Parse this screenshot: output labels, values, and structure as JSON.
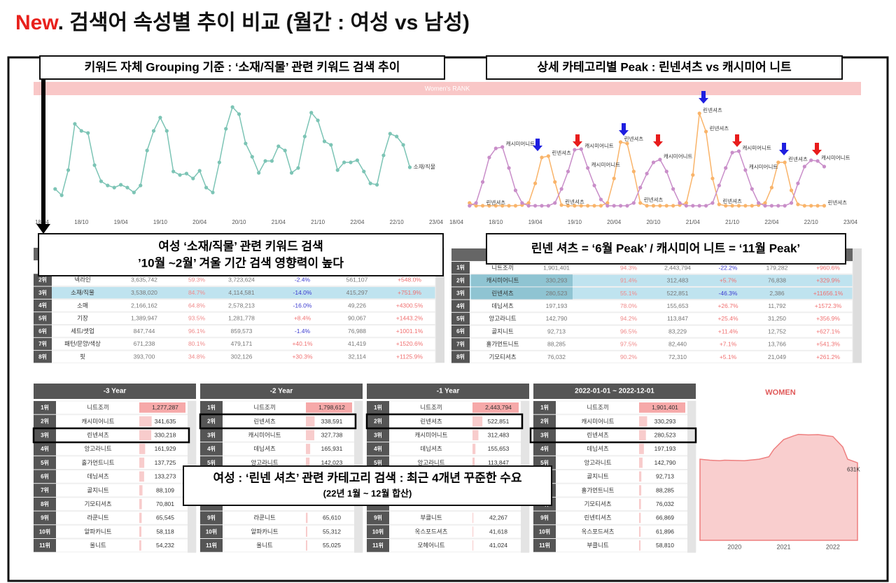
{
  "title": {
    "lead": "New",
    "text": ". 검색어 속성별 추이 비교 (월간 : 여성 vs 남성)"
  },
  "callouts": {
    "top_left": "키워드 자체 Grouping 기준 : ‘소재/직물’ 관련 키워드 검색 추이",
    "top_right": "상세 카테고리별 Peak : 린넨셔츠 vs 캐시미어 니트",
    "mid_left": [
      "여성 ‘소재/직물’  관련 키워드 검색",
      "’10월 ~2월’ 겨울 기간 검색 영향력이 높다"
    ],
    "mid_right": "린넨 셔츠 = ‘6월 Peak’  / 캐시미어 니트 = ‘11월 Peak’",
    "bottom": [
      "여성 : ‘린넨 셔츠’ 관련 카테고리 검색 : 최근 4개년 꾸준한 수요",
      "(22년 1월 ~ 12월 합산)"
    ]
  },
  "banner": "Women's RANK",
  "chart_data": [
    {
      "type": "line",
      "xlim": [
        "18/04",
        "23/04"
      ],
      "ylim": [
        0,
        160
      ],
      "xticks": [
        "18/04",
        "18/10",
        "19/04",
        "19/10",
        "20/04",
        "20/10",
        "21/04",
        "21/10",
        "22/04",
        "22/10",
        "23/04"
      ],
      "x": [
        "18/06",
        "18/07",
        "18/08",
        "18/09",
        "18/10",
        "18/11",
        "18/12",
        "19/01",
        "19/02",
        "19/03",
        "19/04",
        "19/05",
        "19/06",
        "19/07",
        "19/08",
        "19/09",
        "19/10",
        "19/11",
        "19/12",
        "20/01",
        "20/02",
        "20/03",
        "20/04",
        "20/05",
        "20/06",
        "20/07",
        "20/08",
        "20/09",
        "20/10",
        "20/11",
        "20/12",
        "21/01",
        "21/02",
        "21/03",
        "21/04",
        "21/05",
        "21/06",
        "21/07",
        "21/08",
        "21/09",
        "21/10",
        "21/11",
        "21/12",
        "22/01",
        "22/02",
        "22/03",
        "22/04",
        "22/05",
        "22/06",
        "22/07",
        "22/08",
        "22/09",
        "22/10",
        "22/11",
        "22/12"
      ],
      "series": [
        {
          "name": "소재/직물",
          "color": "#7cc4b5",
          "values": [
            30,
            21,
            57,
            123,
            113,
            110,
            64,
            41,
            35,
            32,
            36,
            32,
            25,
            35,
            85,
            113,
            132,
            113,
            55,
            50,
            52,
            45,
            56,
            32,
            25,
            68,
            116,
            147,
            137,
            95,
            76,
            53,
            70,
            70,
            91,
            85,
            53,
            60,
            105,
            139,
            128,
            98,
            93,
            57,
            68,
            68,
            71,
            55,
            38,
            36,
            78,
            109,
            105,
            93,
            61
          ]
        }
      ]
    },
    {
      "type": "line",
      "xlim": [
        "18/04",
        "23/04"
      ],
      "ylim": [
        0,
        160
      ],
      "xticks": [
        "18/04",
        "18/10",
        "19/04",
        "19/10",
        "20/04",
        "20/10",
        "21/04",
        "21/10",
        "22/04",
        "22/10",
        "23/04"
      ],
      "x": [
        "18/06",
        "18/07",
        "18/08",
        "18/09",
        "18/10",
        "18/11",
        "18/12",
        "19/01",
        "19/02",
        "19/03",
        "19/04",
        "19/05",
        "19/06",
        "19/07",
        "19/08",
        "19/09",
        "19/10",
        "19/11",
        "19/12",
        "20/01",
        "20/02",
        "20/03",
        "20/04",
        "20/05",
        "20/06",
        "20/07",
        "20/08",
        "20/09",
        "20/10",
        "20/11",
        "20/12",
        "21/01",
        "21/02",
        "21/03",
        "21/04",
        "21/05",
        "21/06",
        "21/07",
        "21/08",
        "21/09",
        "21/10",
        "21/11",
        "21/12",
        "22/01",
        "22/02",
        "22/03",
        "22/04",
        "22/05",
        "22/06",
        "22/07",
        "22/08",
        "22/09",
        "22/10",
        "22/11",
        "22/12"
      ],
      "series": [
        {
          "name": "린넨셔츠",
          "color": "#f9b46a",
          "values": [
            10,
            6,
            6,
            6,
            6,
            6,
            6,
            6,
            7,
            10,
            38,
            75,
            77,
            40,
            7,
            6,
            6,
            6,
            6,
            6,
            6,
            10,
            45,
            97,
            95,
            55,
            10,
            6,
            6,
            6,
            6,
            6,
            7,
            10,
            50,
            138,
            112,
            45,
            8,
            6,
            6,
            6,
            6,
            6,
            7,
            10,
            32,
            68,
            68,
            28,
            8,
            6,
            6,
            6,
            6
          ]
        },
        {
          "name": "캐시미어니트",
          "color": "#c98ec9",
          "values": [
            6,
            10,
            40,
            75,
            88,
            90,
            60,
            28,
            10,
            6,
            6,
            6,
            6,
            10,
            30,
            55,
            86,
            87,
            60,
            35,
            15,
            6,
            6,
            6,
            6,
            10,
            32,
            52,
            68,
            72,
            55,
            30,
            10,
            6,
            6,
            6,
            6,
            10,
            35,
            60,
            82,
            84,
            57,
            30,
            10,
            6,
            6,
            6,
            6,
            10,
            38,
            62,
            71,
            70,
            62
          ]
        }
      ],
      "annotations": [
        {
          "series": 1,
          "index": 5
        },
        {
          "series": 0,
          "index": 12
        },
        {
          "series": 1,
          "index": 17
        },
        {
          "series": 1,
          "index": 18
        },
        {
          "series": 0,
          "index": 23
        },
        {
          "series": 1,
          "index": 29
        },
        {
          "series": 0,
          "index": 35
        },
        {
          "series": 0,
          "index": 36
        },
        {
          "series": 1,
          "index": 41
        },
        {
          "series": 1,
          "index": 42
        },
        {
          "series": 0,
          "index": 48
        },
        {
          "series": 1,
          "index": 53
        },
        {
          "series": 0,
          "index": 54
        },
        {
          "series": 0,
          "index": 2
        },
        {
          "series": 0,
          "index": 14
        },
        {
          "series": 0,
          "index": 26
        },
        {
          "series": 0,
          "index": 38
        }
      ]
    },
    {
      "type": "area",
      "title": "WOMEN",
      "color": "#f4a6a6",
      "xlim": [
        2019.3,
        2022.5
      ],
      "ylim": [
        0,
        900
      ],
      "xticks": [
        2020,
        2021,
        2022
      ],
      "x": [
        2019.3,
        2019.5,
        2019.7,
        2019.8,
        2020.0,
        2020.2,
        2020.3,
        2020.5,
        2020.7,
        2020.8,
        2021.0,
        2021.2,
        2021.3,
        2021.5,
        2021.7,
        2021.8,
        2022.0,
        2022.2,
        2022.3,
        2022.5
      ],
      "values": [
        660,
        652,
        648,
        652,
        650,
        648,
        652,
        660,
        680,
        740,
        820,
        850,
        862,
        858,
        860,
        855,
        845,
        760,
        660,
        631
      ],
      "value_labels": [
        null,
        null,
        null,
        null,
        null,
        null,
        null,
        null,
        null,
        null,
        null,
        null,
        null,
        null,
        null,
        null,
        null,
        null,
        null,
        "631K"
      ]
    }
  ],
  "tables": {
    "attribute": {
      "rows": [
        {
          "rank": "2위",
          "cells": [
            "넥라인",
            "3,635,742",
            "59.3%",
            "3,723,624",
            "-2.4%",
            "561,107",
            "+548.0%"
          ]
        },
        {
          "rank": "3위",
          "highlight": true,
          "cells": [
            "소재/직물",
            "3,538,020",
            "84.7%",
            "4,114,581",
            "-14.0%",
            "415,297",
            "+751.9%"
          ]
        },
        {
          "rank": "4위",
          "cells": [
            "소매",
            "2,166,162",
            "64.8%",
            "2,578,213",
            "-16.0%",
            "49,226",
            "+4300.5%"
          ]
        },
        {
          "rank": "5위",
          "cells": [
            "기장",
            "1,389,947",
            "93.5%",
            "1,281,778",
            "+8.4%",
            "90,067",
            "+1443.2%"
          ]
        },
        {
          "rank": "6위",
          "cells": [
            "세트/셋업",
            "847,744",
            "96.1%",
            "859,573",
            "-1.4%",
            "76,988",
            "+1001.1%"
          ]
        },
        {
          "rank": "7위",
          "cells": [
            "패턴/문양/색상",
            "671,238",
            "80.1%",
            "479,171",
            "+40.1%",
            "41,419",
            "+1520.6%"
          ]
        },
        {
          "rank": "8위",
          "cells": [
            "핏",
            "393,700",
            "34.8%",
            "302,126",
            "+30.3%",
            "32,114",
            "+1125.9%"
          ]
        }
      ]
    },
    "category": {
      "rows": [
        {
          "rank": "1위",
          "cells": [
            "니트조끼",
            "1,901,401",
            "94.3%",
            "2,443,794",
            "-22.2%",
            "179,282",
            "+960.6%"
          ]
        },
        {
          "rank": "2위",
          "highlight": true,
          "cells": [
            "캐시미어니트",
            "330,293",
            "91.4%",
            "312,483",
            "+5.7%",
            "76,838",
            "+329.9%"
          ]
        },
        {
          "rank": "3위",
          "highlight": true,
          "cells": [
            "린넨셔츠",
            "280,523",
            "55.1%",
            "522,851",
            "-46.3%",
            "2,386",
            "+11656.1%"
          ]
        },
        {
          "rank": "4위",
          "cells": [
            "데님셔츠",
            "197,193",
            "78.0%",
            "155,653",
            "+26.7%",
            "11,792",
            "+1572.3%"
          ]
        },
        {
          "rank": "5위",
          "cells": [
            "앙고라니트",
            "142,790",
            "94.2%",
            "113,847",
            "+25.4%",
            "31,250",
            "+356.9%"
          ]
        },
        {
          "rank": "6위",
          "cells": [
            "골지니트",
            "92,713",
            "96.5%",
            "83,229",
            "+11.4%",
            "12,752",
            "+627.1%"
          ]
        },
        {
          "rank": "7위",
          "cells": [
            "홀가먼트니트",
            "88,285",
            "97.5%",
            "82,440",
            "+7.1%",
            "13,766",
            "+541.3%"
          ]
        },
        {
          "rank": "8위",
          "cells": [
            "기모티셔츠",
            "76,032",
            "90.2%",
            "72,310",
            "+5.1%",
            "21,049",
            "+261.2%"
          ]
        }
      ]
    }
  },
  "rank_tables": [
    {
      "header": "-3 Year",
      "rows": [
        {
          "rank": "1위",
          "name": "니트조끼",
          "value": 1277287,
          "label": "1,277,287"
        },
        {
          "rank": "2위",
          "name": "캐시미어니트",
          "value": 341635,
          "label": "341,635"
        },
        {
          "rank": "3위",
          "name": "린넨셔츠",
          "value": 330218,
          "label": "330,218"
        },
        {
          "rank": "4위",
          "name": "앙고라니트",
          "value": 161929,
          "label": "161,929"
        },
        {
          "rank": "5위",
          "name": "홀가먼트니트",
          "value": 137725,
          "label": "137,725"
        },
        {
          "rank": "6위",
          "name": "데님셔츠",
          "value": 133273,
          "label": "133,273"
        },
        {
          "rank": "7위",
          "name": "골지니트",
          "value": 88109,
          "label": "88,109"
        },
        {
          "rank": "8위",
          "name": "기모티셔츠",
          "value": 70801,
          "label": "70,801"
        },
        {
          "rank": "9위",
          "name": "라쿤니트",
          "value": 65545,
          "label": "65,545"
        },
        {
          "rank": "10위",
          "name": "알파카니트",
          "value": 58118,
          "label": "58,118"
        },
        {
          "rank": "11위",
          "name": "울니트",
          "value": 54232,
          "label": "54,232"
        }
      ]
    },
    {
      "header": "-2 Year",
      "rows": [
        {
          "rank": "1위",
          "name": "니트조끼",
          "value": 1798612,
          "label": "1,798,612"
        },
        {
          "rank": "2위",
          "name": "린넨셔츠",
          "value": 338591,
          "label": "338,591"
        },
        {
          "rank": "3위",
          "name": "캐시미어니트",
          "value": 327738,
          "label": "327,738"
        },
        {
          "rank": "4위",
          "name": "데님셔츠",
          "value": 165931,
          "label": "165,931"
        },
        {
          "rank": "5위",
          "name": "앙고라니트",
          "value": 142023,
          "label": "142,023"
        },
        {
          "rank": "9위",
          "name": "라쿤니트",
          "value": 65610,
          "label": "65,610"
        },
        {
          "rank": "10위",
          "name": "알파카니트",
          "value": 55312,
          "label": "55,312"
        },
        {
          "rank": "11위",
          "name": "울니트",
          "value": 55025,
          "label": "55,025"
        }
      ]
    },
    {
      "header": "-1 Year",
      "rows": [
        {
          "rank": "1위",
          "name": "니트조끼",
          "value": 2443794,
          "label": "2,443,794"
        },
        {
          "rank": "2위",
          "name": "린넨셔츠",
          "value": 522851,
          "label": "522,851"
        },
        {
          "rank": "3위",
          "name": "캐시미어니트",
          "value": 312483,
          "label": "312,483"
        },
        {
          "rank": "4위",
          "name": "데님셔츠",
          "value": 155653,
          "label": "155,653"
        },
        {
          "rank": "5위",
          "name": "앙고라니트",
          "value": 113847,
          "label": "113,847"
        },
        {
          "rank": "9위",
          "name": "부클니트",
          "value": 42267,
          "label": "42,267"
        },
        {
          "rank": "10위",
          "name": "옥스포드셔츠",
          "value": 41618,
          "label": "41,618"
        },
        {
          "rank": "11위",
          "name": "모헤어니트",
          "value": 41024,
          "label": "41,024"
        }
      ]
    },
    {
      "header": "2022-01-01 ~ 2022-12-01",
      "rows": [
        {
          "rank": "1위",
          "name": "니트조끼",
          "value": 1901401,
          "label": "1,901,401"
        },
        {
          "rank": "2위",
          "name": "캐시미어니트",
          "value": 330293,
          "label": "330,293"
        },
        {
          "rank": "3위",
          "name": "린넨셔츠",
          "value": 280523,
          "label": "280,523"
        },
        {
          "rank": "4위",
          "name": "데님셔츠",
          "value": 197193,
          "label": "197,193"
        },
        {
          "rank": "5위",
          "name": "앙고라니트",
          "value": 142790,
          "label": "142,790"
        },
        {
          "rank": "6위",
          "name": "골지니트",
          "value": 92713,
          "label": "92,713"
        },
        {
          "rank": "7위",
          "name": "홀가먼트니트",
          "value": 88285,
          "label": "88,285"
        },
        {
          "rank": "8위",
          "name": "기모티셔츠",
          "value": 76032,
          "label": "76,032"
        },
        {
          "rank": "9위",
          "name": "린넨티셔츠",
          "value": 66869,
          "label": "66,869"
        },
        {
          "rank": "10위",
          "name": "옥스포드셔츠",
          "value": 61896,
          "label": "61,896"
        },
        {
          "rank": "11위",
          "name": "부클니트",
          "value": 58810,
          "label": "58,810"
        }
      ]
    }
  ]
}
